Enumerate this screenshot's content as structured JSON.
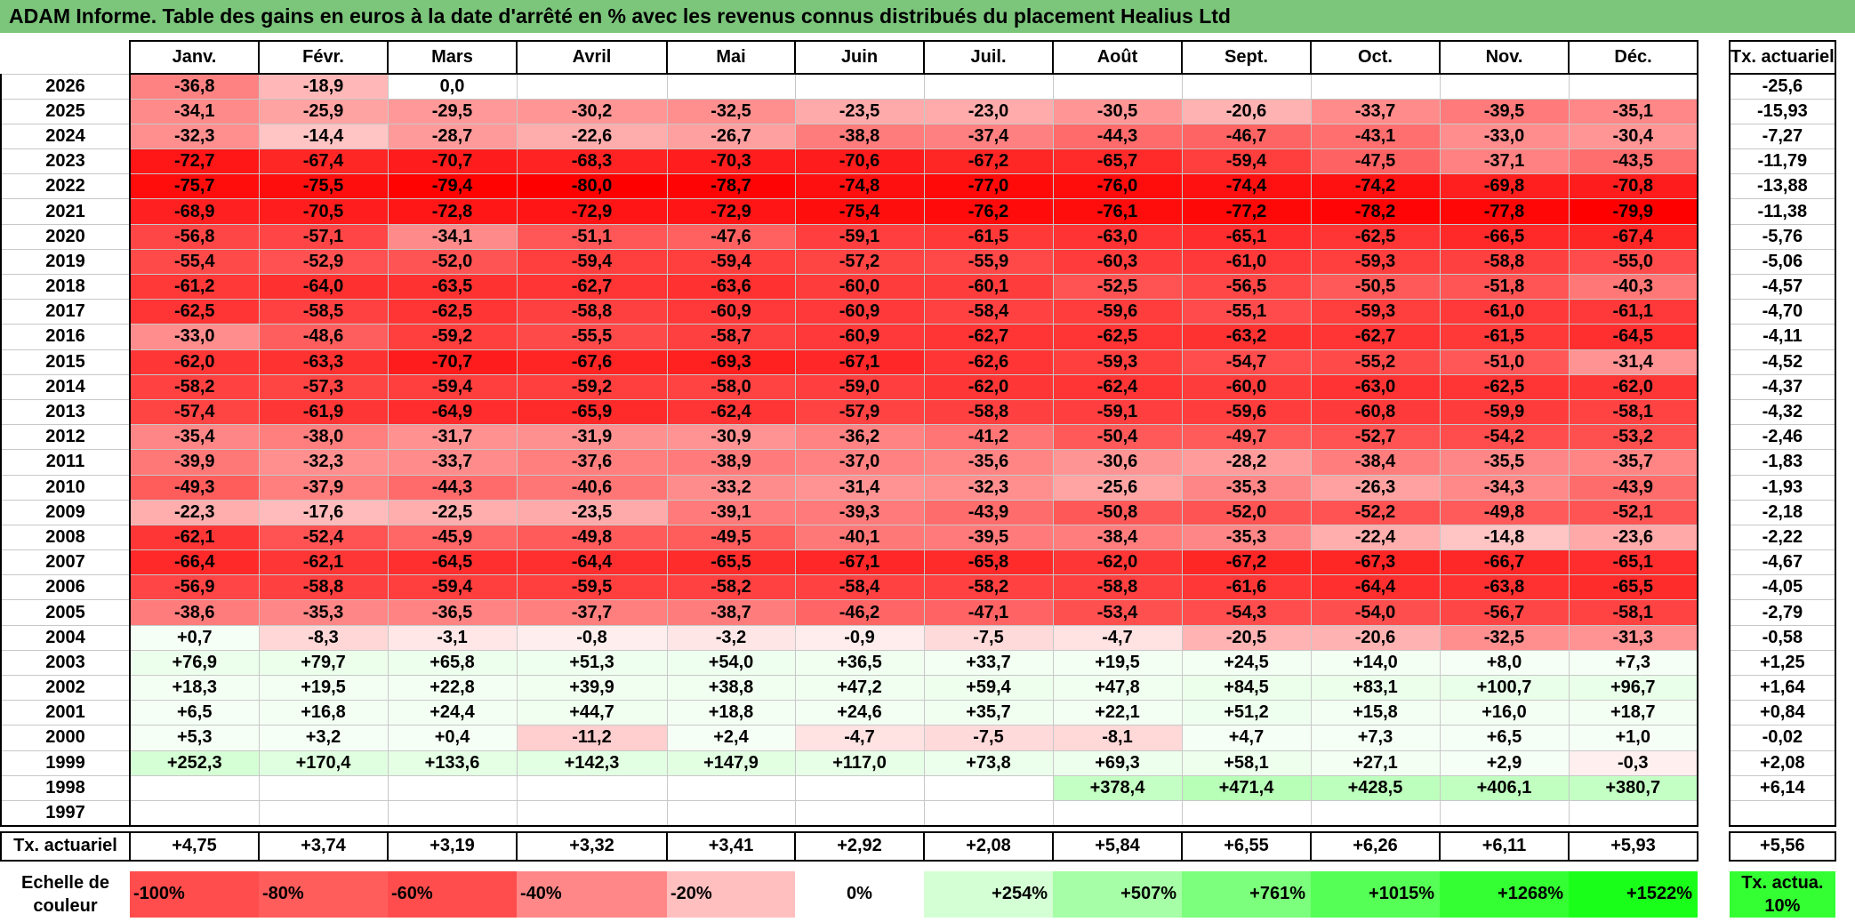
{
  "title": "ADAM Informe. Table des gains en euros à la date d'arrêté en % avec les revenus connus distribués du placement Healius Ltd",
  "months": [
    "Janv.",
    "Févr.",
    "Mars",
    "Avril",
    "Mai",
    "Juin",
    "Juil.",
    "Août",
    "Sept.",
    "Oct.",
    "Nov.",
    "Déc."
  ],
  "tx_header": "Tx. actuariel",
  "rows": [
    {
      "year": "2026",
      "values": [
        "-36,8",
        "-18,9",
        "0,0",
        "",
        "",
        "",
        "",
        "",
        "",
        "",
        "",
        ""
      ],
      "tx": "-25,6"
    },
    {
      "year": "2025",
      "values": [
        "-34,1",
        "-25,9",
        "-29,5",
        "-30,2",
        "-32,5",
        "-23,5",
        "-23,0",
        "-30,5",
        "-20,6",
        "-33,7",
        "-39,5",
        "-35,1"
      ],
      "tx": "-15,93"
    },
    {
      "year": "2024",
      "values": [
        "-32,3",
        "-14,4",
        "-28,7",
        "-22,6",
        "-26,7",
        "-38,8",
        "-37,4",
        "-44,3",
        "-46,7",
        "-43,1",
        "-33,0",
        "-30,4"
      ],
      "tx": "-7,27"
    },
    {
      "year": "2023",
      "values": [
        "-72,7",
        "-67,4",
        "-70,7",
        "-68,3",
        "-70,3",
        "-70,6",
        "-67,2",
        "-65,7",
        "-59,4",
        "-47,5",
        "-37,1",
        "-43,5"
      ],
      "tx": "-11,79"
    },
    {
      "year": "2022",
      "values": [
        "-75,7",
        "-75,5",
        "-79,4",
        "-80,0",
        "-78,7",
        "-74,8",
        "-77,0",
        "-76,0",
        "-74,4",
        "-74,2",
        "-69,8",
        "-70,8"
      ],
      "tx": "-13,88"
    },
    {
      "year": "2021",
      "values": [
        "-68,9",
        "-70,5",
        "-72,8",
        "-72,9",
        "-72,9",
        "-75,4",
        "-76,2",
        "-76,1",
        "-77,2",
        "-78,2",
        "-77,8",
        "-79,9"
      ],
      "tx": "-11,38"
    },
    {
      "year": "2020",
      "values": [
        "-56,8",
        "-57,1",
        "-34,1",
        "-51,1",
        "-47,6",
        "-59,1",
        "-61,5",
        "-63,0",
        "-65,1",
        "-62,5",
        "-66,5",
        "-67,4"
      ],
      "tx": "-5,76"
    },
    {
      "year": "2019",
      "values": [
        "-55,4",
        "-52,9",
        "-52,0",
        "-59,4",
        "-59,4",
        "-57,2",
        "-55,9",
        "-60,3",
        "-61,0",
        "-59,3",
        "-58,8",
        "-55,0"
      ],
      "tx": "-5,06"
    },
    {
      "year": "2018",
      "values": [
        "-61,2",
        "-64,0",
        "-63,5",
        "-62,7",
        "-63,6",
        "-60,0",
        "-60,1",
        "-52,5",
        "-56,5",
        "-50,5",
        "-51,8",
        "-40,3"
      ],
      "tx": "-4,57"
    },
    {
      "year": "2017",
      "values": [
        "-62,5",
        "-58,5",
        "-62,5",
        "-58,8",
        "-60,9",
        "-60,9",
        "-58,4",
        "-59,6",
        "-55,1",
        "-59,3",
        "-61,0",
        "-61,1"
      ],
      "tx": "-4,70"
    },
    {
      "year": "2016",
      "values": [
        "-33,0",
        "-48,6",
        "-59,2",
        "-55,5",
        "-58,7",
        "-60,9",
        "-62,7",
        "-62,5",
        "-63,2",
        "-62,7",
        "-61,5",
        "-64,5"
      ],
      "tx": "-4,11"
    },
    {
      "year": "2015",
      "values": [
        "-62,0",
        "-63,3",
        "-70,7",
        "-67,6",
        "-69,3",
        "-67,1",
        "-62,6",
        "-59,3",
        "-54,7",
        "-55,2",
        "-51,0",
        "-31,4"
      ],
      "tx": "-4,52"
    },
    {
      "year": "2014",
      "values": [
        "-58,2",
        "-57,3",
        "-59,4",
        "-59,2",
        "-58,0",
        "-59,0",
        "-62,0",
        "-62,4",
        "-60,0",
        "-63,0",
        "-62,5",
        "-62,0"
      ],
      "tx": "-4,37"
    },
    {
      "year": "2013",
      "values": [
        "-57,4",
        "-61,9",
        "-64,9",
        "-65,9",
        "-62,4",
        "-57,9",
        "-58,8",
        "-59,1",
        "-59,6",
        "-60,8",
        "-59,9",
        "-58,1"
      ],
      "tx": "-4,32"
    },
    {
      "year": "2012",
      "values": [
        "-35,4",
        "-38,0",
        "-31,7",
        "-31,9",
        "-30,9",
        "-36,2",
        "-41,2",
        "-50,4",
        "-49,7",
        "-52,7",
        "-54,2",
        "-53,2"
      ],
      "tx": "-2,46"
    },
    {
      "year": "2011",
      "values": [
        "-39,9",
        "-32,3",
        "-33,7",
        "-37,6",
        "-38,9",
        "-37,0",
        "-35,6",
        "-30,6",
        "-28,2",
        "-38,4",
        "-35,5",
        "-35,7"
      ],
      "tx": "-1,83"
    },
    {
      "year": "2010",
      "values": [
        "-49,3",
        "-37,9",
        "-44,3",
        "-40,6",
        "-33,2",
        "-31,4",
        "-32,3",
        "-25,6",
        "-35,3",
        "-26,3",
        "-34,3",
        "-43,9"
      ],
      "tx": "-1,93"
    },
    {
      "year": "2009",
      "values": [
        "-22,3",
        "-17,6",
        "-22,5",
        "-23,5",
        "-39,1",
        "-39,3",
        "-43,9",
        "-50,8",
        "-52,0",
        "-52,2",
        "-49,8",
        "-52,1"
      ],
      "tx": "-2,18"
    },
    {
      "year": "2008",
      "values": [
        "-62,1",
        "-52,4",
        "-45,9",
        "-49,8",
        "-49,5",
        "-40,1",
        "-39,5",
        "-38,4",
        "-35,3",
        "-22,4",
        "-14,8",
        "-23,6"
      ],
      "tx": "-2,22"
    },
    {
      "year": "2007",
      "values": [
        "-66,4",
        "-62,1",
        "-64,5",
        "-64,4",
        "-65,5",
        "-67,1",
        "-65,8",
        "-62,0",
        "-67,2",
        "-67,3",
        "-66,7",
        "-65,1"
      ],
      "tx": "-4,67"
    },
    {
      "year": "2006",
      "values": [
        "-56,9",
        "-58,8",
        "-59,4",
        "-59,5",
        "-58,2",
        "-58,4",
        "-58,2",
        "-58,8",
        "-61,6",
        "-64,4",
        "-63,8",
        "-65,5"
      ],
      "tx": "-4,05"
    },
    {
      "year": "2005",
      "values": [
        "-38,6",
        "-35,3",
        "-36,5",
        "-37,7",
        "-38,7",
        "-46,2",
        "-47,1",
        "-53,4",
        "-54,3",
        "-54,0",
        "-56,7",
        "-58,1"
      ],
      "tx": "-2,79"
    },
    {
      "year": "2004",
      "values": [
        "+0,7",
        "-8,3",
        "-3,1",
        "-0,8",
        "-3,2",
        "-0,9",
        "-7,5",
        "-4,7",
        "-20,5",
        "-20,6",
        "-32,5",
        "-31,3"
      ],
      "tx": "-0,58"
    },
    {
      "year": "2003",
      "values": [
        "+76,9",
        "+79,7",
        "+65,8",
        "+51,3",
        "+54,0",
        "+36,5",
        "+33,7",
        "+19,5",
        "+24,5",
        "+14,0",
        "+8,0",
        "+7,3"
      ],
      "tx": "+1,25"
    },
    {
      "year": "2002",
      "values": [
        "+18,3",
        "+19,5",
        "+22,8",
        "+39,9",
        "+38,8",
        "+47,2",
        "+59,4",
        "+47,8",
        "+84,5",
        "+83,1",
        "+100,7",
        "+96,7"
      ],
      "tx": "+1,64"
    },
    {
      "year": "2001",
      "values": [
        "+6,5",
        "+16,8",
        "+24,4",
        "+44,7",
        "+18,8",
        "+24,6",
        "+35,7",
        "+22,1",
        "+51,2",
        "+15,8",
        "+16,0",
        "+18,7"
      ],
      "tx": "+0,84"
    },
    {
      "year": "2000",
      "values": [
        "+5,3",
        "+3,2",
        "+0,4",
        "-11,2",
        "+2,4",
        "-4,7",
        "-7,5",
        "-8,1",
        "+4,7",
        "+7,3",
        "+6,5",
        "+1,0"
      ],
      "tx": "-0,02"
    },
    {
      "year": "1999",
      "values": [
        "+252,3",
        "+170,4",
        "+133,6",
        "+142,3",
        "+147,9",
        "+117,0",
        "+73,8",
        "+69,3",
        "+58,1",
        "+27,1",
        "+2,9",
        "-0,3"
      ],
      "tx": "+2,08"
    },
    {
      "year": "1998",
      "values": [
        "",
        "",
        "",
        "",
        "",
        "",
        "",
        "+378,4",
        "+471,4",
        "+428,5",
        "+406,1",
        "+380,7"
      ],
      "tx": "+6,14"
    },
    {
      "year": "1997",
      "values": [
        "",
        "",
        "",
        "",
        "",
        "",
        "",
        "",
        "",
        "",
        "",
        ""
      ],
      "tx": ""
    }
  ],
  "summary": {
    "label": "Tx. actuariel",
    "values": [
      "+4,75",
      "+3,74",
      "+3,19",
      "+3,32",
      "+3,41",
      "+2,92",
      "+2,08",
      "+5,84",
      "+6,55",
      "+6,26",
      "+6,11",
      "+5,93"
    ],
    "tx": "+5,56"
  },
  "scale": {
    "label": "Echelle de couleur",
    "items": [
      {
        "text": "-100%",
        "color": "#ff4d4d"
      },
      {
        "text": "-80%",
        "color": "#ff5c5c"
      },
      {
        "text": "-60%",
        "color": "#ff4d4d"
      },
      {
        "text": "-40%",
        "color": "#ff8787"
      },
      {
        "text": "-20%",
        "color": "#ffbfbf"
      },
      {
        "text": "0%",
        "color": "#ffffff"
      },
      {
        "text": "+254%",
        "color": "#d4ffd4"
      },
      {
        "text": "+507%",
        "color": "#a6ffa6"
      },
      {
        "text": "+761%",
        "color": "#7cff7c"
      },
      {
        "text": "+1015%",
        "color": "#55ff55"
      },
      {
        "text": "+1268%",
        "color": "#33ff33"
      },
      {
        "text": "+1522%",
        "color": "#1aff1a"
      }
    ],
    "tx_label": "Tx. actua. 10%",
    "tx_color": "#33ff33"
  }
}
